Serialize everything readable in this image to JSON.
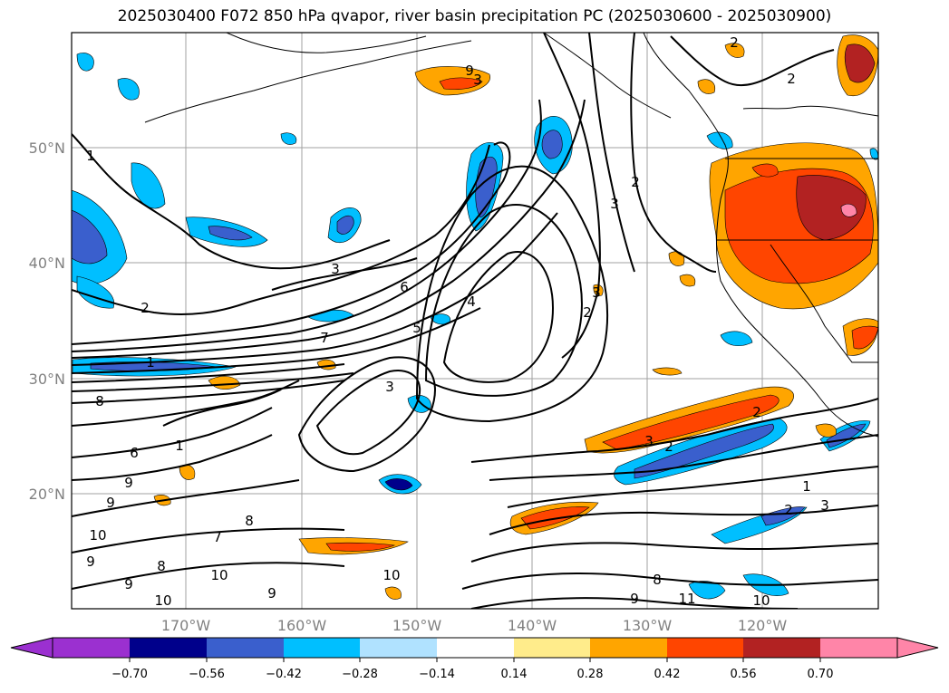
{
  "title": "2025030400 F072 850 hPa qvapor, river basin precipitation PC (2025030600 - 2025030900)",
  "lat_labels": [
    "50°N",
    "40°N",
    "30°N",
    "20°N"
  ],
  "lon_labels": [
    "170°W",
    "160°W",
    "150°W",
    "140°W",
    "130°W",
    "120°W"
  ],
  "contour_labels": [
    "1",
    "2",
    "3",
    "4",
    "5",
    "6",
    "7",
    "8",
    "9",
    "10",
    "11"
  ],
  "colorbar": {
    "ticks": [
      "−0.70",
      "−0.56",
      "−0.42",
      "−0.28",
      "−0.14",
      "0.14",
      "0.28",
      "0.42",
      "0.56",
      "0.70"
    ],
    "colors": [
      "#9b30d0",
      "#00008b",
      "#3a5fcd",
      "#00bfff",
      "#b0e2ff",
      "#ffffff",
      "#ffec8b",
      "#ffa500",
      "#ff4500",
      "#b22222",
      "#ff85a8"
    ]
  },
  "chart_data": {
    "type": "heatmap",
    "title": "2025030400 F072 850 hPa qvapor, river basin precipitation PC (2025030600 - 2025030900)",
    "lon_ticks_deg": [
      -170,
      -160,
      -150,
      -140,
      -130,
      -120
    ],
    "lat_ticks_deg": [
      50,
      40,
      30,
      20
    ],
    "colorbar_levels": [
      -0.7,
      -0.56,
      -0.42,
      -0.28,
      -0.14,
      0.14,
      0.28,
      0.42,
      0.56,
      0.7
    ],
    "contour_levels_qvapor": [
      1,
      2,
      3,
      4,
      5,
      6,
      7,
      8,
      9,
      10,
      11
    ]
  }
}
